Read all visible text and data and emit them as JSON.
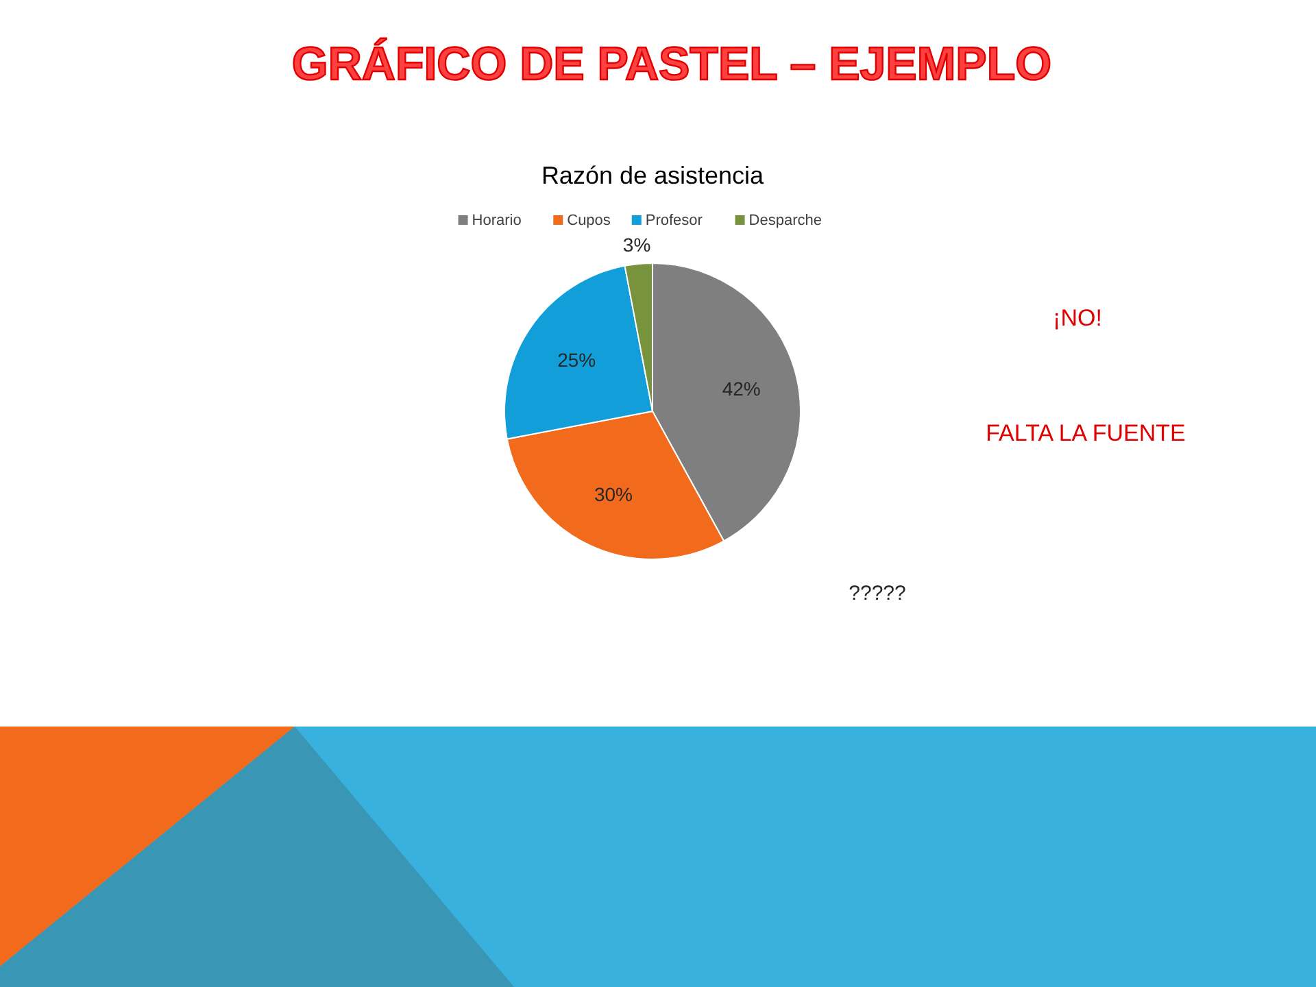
{
  "chart_data": {
    "type": "pie",
    "title": "GRÁFICO DE PASTEL – EJEMPLO",
    "subtitle": "Razón de asistencia",
    "categories": [
      "Horario",
      "Cupos",
      "Profesor",
      "Desparche"
    ],
    "values": [
      42,
      30,
      25,
      3
    ],
    "colors": [
      "#7f7f7f",
      "#f26b1d",
      "#129fd9",
      "#77933c"
    ],
    "value_labels": [
      "42%",
      "30%",
      "25%",
      "3%"
    ],
    "legend": "top",
    "annotations": [
      "¡NO!",
      "FALTA LA FUENTE",
      "?????"
    ]
  }
}
